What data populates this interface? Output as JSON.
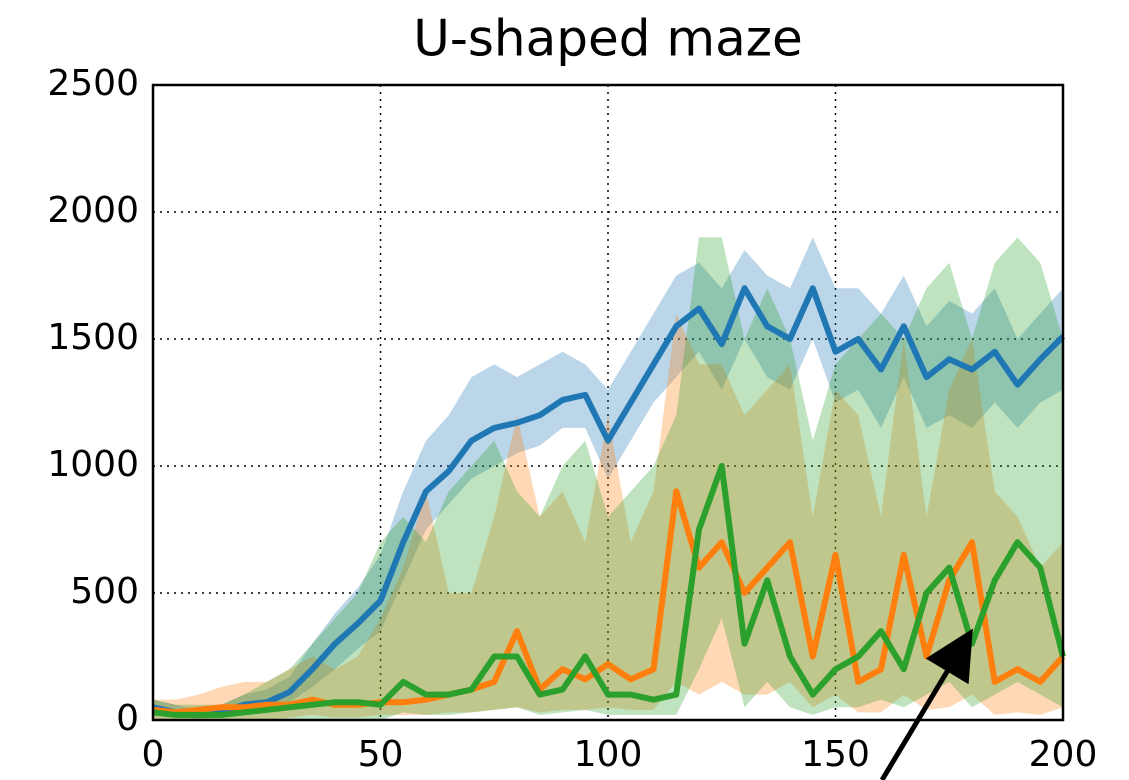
{
  "chart_data": {
    "type": "line",
    "title": "U-shaped maze",
    "x": [
      0,
      5,
      10,
      15,
      20,
      25,
      30,
      35,
      40,
      45,
      50,
      55,
      60,
      65,
      70,
      75,
      80,
      85,
      90,
      95,
      100,
      105,
      110,
      115,
      120,
      125,
      130,
      135,
      140,
      145,
      150,
      155,
      160,
      165,
      170,
      175,
      180,
      185,
      190,
      195,
      200
    ],
    "series": [
      {
        "color": "#1f77b4",
        "values": [
          50,
          30,
          20,
          30,
          60,
          70,
          110,
          200,
          300,
          380,
          470,
          700,
          900,
          980,
          1100,
          1150,
          1170,
          1200,
          1260,
          1280,
          1100,
          1250,
          1400,
          1550,
          1620,
          1480,
          1700,
          1550,
          1500,
          1700,
          1450,
          1500,
          1380,
          1550,
          1350,
          1420,
          1380,
          1450,
          1320,
          1420,
          1510
        ],
        "lower": [
          20,
          10,
          5,
          10,
          30,
          40,
          70,
          130,
          200,
          280,
          350,
          550,
          750,
          850,
          950,
          1000,
          1050,
          1080,
          1150,
          1150,
          950,
          1100,
          1250,
          1350,
          1450,
          1300,
          1500,
          1350,
          1300,
          1500,
          1250,
          1300,
          1150,
          1350,
          1150,
          1200,
          1150,
          1250,
          1150,
          1250,
          1300
        ],
        "upper": [
          80,
          60,
          40,
          60,
          100,
          120,
          170,
          300,
          420,
          520,
          650,
          900,
          1100,
          1200,
          1350,
          1400,
          1350,
          1400,
          1450,
          1400,
          1300,
          1450,
          1600,
          1750,
          1800,
          1700,
          1850,
          1750,
          1700,
          1900,
          1700,
          1700,
          1600,
          1750,
          1550,
          1650,
          1600,
          1700,
          1500,
          1600,
          1700
        ]
      },
      {
        "color": "#ff7f0e",
        "values": [
          40,
          30,
          40,
          50,
          50,
          60,
          60,
          80,
          60,
          60,
          70,
          70,
          80,
          100,
          120,
          150,
          350,
          120,
          200,
          160,
          220,
          160,
          200,
          900,
          600,
          700,
          500,
          600,
          700,
          250,
          650,
          150,
          200,
          650,
          250,
          550,
          700,
          150,
          200,
          150,
          250
        ],
        "lower": [
          0,
          0,
          0,
          0,
          0,
          0,
          10,
          20,
          10,
          10,
          20,
          20,
          20,
          30,
          30,
          40,
          50,
          30,
          40,
          40,
          50,
          40,
          40,
          150,
          100,
          150,
          100,
          100,
          150,
          50,
          100,
          30,
          30,
          100,
          40,
          50,
          100,
          20,
          30,
          20,
          50
        ],
        "upper": [
          80,
          80,
          100,
          130,
          150,
          150,
          200,
          250,
          200,
          250,
          400,
          600,
          900,
          500,
          500,
          800,
          1200,
          800,
          900,
          700,
          1200,
          700,
          900,
          1600,
          1400,
          1400,
          1200,
          1300,
          1400,
          800,
          1300,
          1200,
          800,
          1500,
          800,
          1300,
          1500,
          900,
          800,
          600,
          700
        ]
      },
      {
        "color": "#2ca02c",
        "values": [
          30,
          20,
          20,
          20,
          30,
          40,
          50,
          60,
          70,
          70,
          60,
          150,
          100,
          100,
          120,
          250,
          250,
          100,
          120,
          250,
          100,
          100,
          80,
          100,
          750,
          1000,
          300,
          550,
          250,
          100,
          200,
          250,
          350,
          200,
          500,
          600,
          300,
          550,
          700,
          600,
          250
        ],
        "lower": [
          0,
          0,
          0,
          0,
          0,
          0,
          0,
          0,
          0,
          0,
          0,
          30,
          20,
          20,
          30,
          40,
          50,
          20,
          30,
          40,
          20,
          20,
          20,
          20,
          200,
          400,
          50,
          150,
          50,
          20,
          50,
          50,
          80,
          50,
          100,
          150,
          50,
          100,
          150,
          100,
          50
        ],
        "upper": [
          80,
          60,
          60,
          60,
          100,
          150,
          200,
          300,
          400,
          500,
          700,
          800,
          700,
          900,
          1000,
          1100,
          900,
          800,
          1000,
          1100,
          800,
          900,
          1000,
          1200,
          1900,
          1900,
          1500,
          1700,
          1500,
          1100,
          1400,
          1500,
          1600,
          1500,
          1700,
          1800,
          1500,
          1800,
          1900,
          1800,
          1500
        ]
      }
    ],
    "xlim": [
      0,
      200
    ],
    "xticks": [
      0,
      50,
      100,
      150,
      200
    ],
    "ylim": [
      0,
      2500
    ],
    "yticks": [
      0,
      500,
      1000,
      1500,
      2000,
      2500
    ],
    "grid": true
  }
}
